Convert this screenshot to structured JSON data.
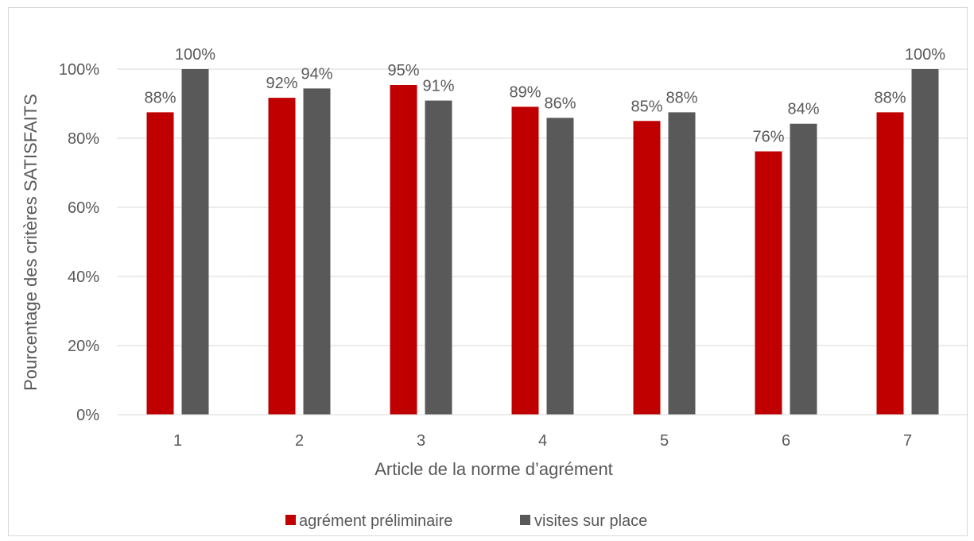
{
  "chart_data": {
    "type": "bar",
    "categories": [
      "1",
      "2",
      "3",
      "4",
      "5",
      "6",
      "7"
    ],
    "series": [
      {
        "name": "agrément préliminaire",
        "color": "#c00000",
        "values": [
          0.875,
          0.917,
          0.954,
          0.891,
          0.85,
          0.762,
          0.875
        ],
        "labels": [
          "88%",
          "92%",
          "95%",
          "89%",
          "85%",
          "76%",
          "88%"
        ]
      },
      {
        "name": "visites sur place",
        "color": "#595959",
        "values": [
          1.0,
          0.944,
          0.909,
          0.859,
          0.875,
          0.842,
          1.0
        ],
        "labels": [
          "100%",
          "94%",
          "91%",
          "86%",
          "88%",
          "84%",
          "100%"
        ]
      }
    ],
    "xlabel": "Article de la norme d’agrément",
    "ylabel": "Pourcentage des critères SATISFAITS",
    "ylim": [
      0,
      1
    ],
    "yticks": [
      0,
      0.2,
      0.4,
      0.6,
      0.8,
      1.0
    ],
    "ytick_labels": [
      "0%",
      "20%",
      "40%",
      "60%",
      "80%",
      "100%"
    ],
    "grid": true,
    "legend_position": "bottom"
  }
}
